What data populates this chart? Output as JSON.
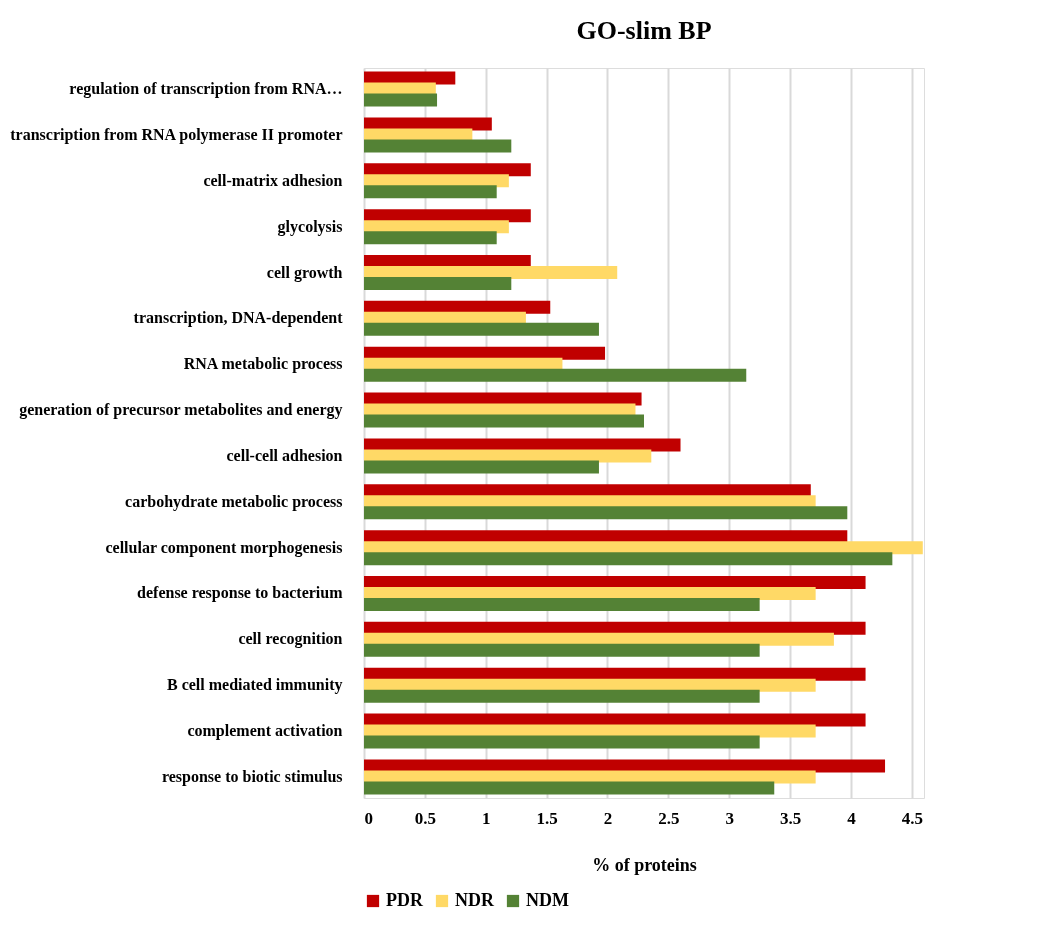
{
  "chart_data": {
    "type": "bar",
    "orientation": "horizontal",
    "title": "GO-slim BP",
    "xlabel": "% of proteins",
    "categories": [
      "regulation of transcription from RNA…",
      "transcription from RNA polymerase II promoter",
      "cell-matrix adhesion",
      "glycolysis",
      "cell growth",
      "transcription, DNA-dependent",
      "RNA metabolic process",
      "generation of precursor metabolites and energy",
      "cell-cell adhesion",
      "carbohydrate metabolic process",
      "cellular component morphogenesis",
      "defense response to bacterium",
      "cell recognition",
      "B cell mediated immunity",
      "complement activation",
      "response to biotic stimulus"
    ],
    "series": [
      {
        "name": "PDR",
        "color": "#c00000",
        "values": [
          0.75,
          1.05,
          1.37,
          1.37,
          1.37,
          1.53,
          1.98,
          2.28,
          2.6,
          3.67,
          3.97,
          4.12,
          4.12,
          4.12,
          4.12,
          4.28
        ]
      },
      {
        "name": "NDR",
        "color": "#ffd966",
        "values": [
          0.59,
          0.89,
          1.19,
          1.19,
          2.08,
          1.33,
          1.63,
          2.23,
          2.36,
          3.71,
          4.59,
          3.71,
          3.86,
          3.71,
          3.71,
          3.71
        ]
      },
      {
        "name": "NDM",
        "color": "#548235",
        "values": [
          0.6,
          1.21,
          1.09,
          1.09,
          1.21,
          1.93,
          3.14,
          2.3,
          1.93,
          3.97,
          4.34,
          3.25,
          3.25,
          3.25,
          3.25,
          3.37
        ]
      }
    ],
    "xlim": [
      0,
      4.6
    ],
    "xticks": [
      0,
      0.5,
      1,
      1.5,
      2,
      2.5,
      3,
      3.5,
      4,
      4.5
    ],
    "grid": "x",
    "legend": "bottom"
  }
}
